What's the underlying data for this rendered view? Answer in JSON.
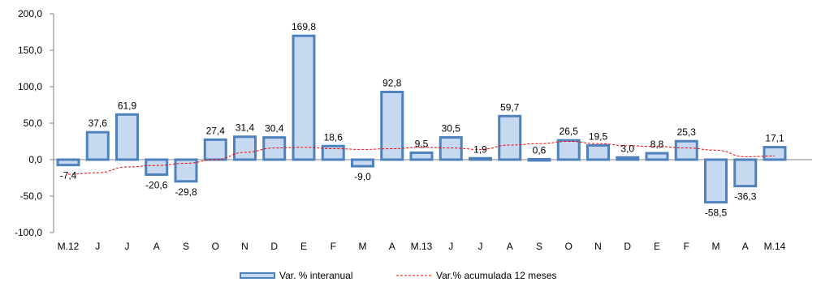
{
  "chart_data": {
    "type": "bar",
    "categories": [
      "M.12",
      "J",
      "J",
      "A",
      "S",
      "O",
      "N",
      "D",
      "E",
      "F",
      "M",
      "A",
      "M.13",
      "J",
      "J",
      "A",
      "S",
      "O",
      "N",
      "D",
      "E",
      "F",
      "M",
      "A",
      "M.14"
    ],
    "series": [
      {
        "name": "Var. % interanual",
        "type": "bar",
        "values": [
          -7.4,
          37.6,
          61.9,
          -20.6,
          -29.8,
          27.4,
          31.4,
          30.4,
          169.8,
          18.6,
          -9.0,
          92.8,
          9.5,
          30.5,
          1.9,
          59.7,
          0.6,
          26.5,
          19.5,
          3.0,
          8.8,
          25.3,
          -58.5,
          -36.3,
          17.1
        ],
        "labels": [
          "-7,4",
          "37,6",
          "61,9",
          "-20,6",
          "-29,8",
          "27,4",
          "31,4",
          "30,4",
          "169,8",
          "18,6",
          "-9,0",
          "92,8",
          "9,5",
          "30,5",
          "1,9",
          "59,7",
          "0,6",
          "26,5",
          "19,5",
          "3,0",
          "8,8",
          "25,3",
          "-58,5",
          "-36,3",
          "17,1"
        ],
        "color": "#c6d9f1",
        "border": "#4f81bd"
      },
      {
        "name": "Var.% acumulada 12 meses",
        "type": "line",
        "values": [
          -20,
          -18,
          -10,
          -8,
          -5,
          0,
          10,
          16,
          17,
          15,
          14,
          15,
          17,
          16,
          14,
          20,
          22,
          25,
          22,
          19,
          18,
          16,
          13,
          4,
          5
        ],
        "color": "#ff0000",
        "dash": "dashed"
      }
    ],
    "yticks": [
      "200,0",
      "150,0",
      "100,0",
      "50,0",
      "0,0",
      "-50,0",
      "-100,0"
    ],
    "ytick_values": [
      200,
      150,
      100,
      50,
      0,
      -50,
      -100
    ],
    "ylim": [
      -100,
      200
    ],
    "title": "",
    "xlabel": "",
    "ylabel": "",
    "legend_position": "bottom-center",
    "grid": false
  }
}
